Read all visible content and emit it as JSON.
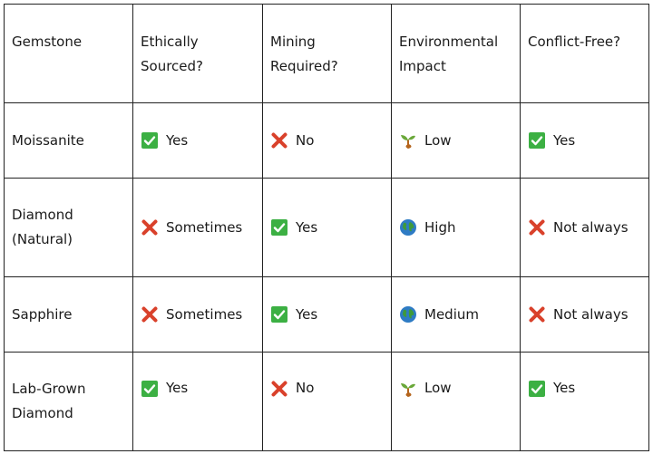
{
  "table": {
    "headers": [
      {
        "line1": "Gemstone",
        "line2": ""
      },
      {
        "line1": "Ethically",
        "line2": "Sourced?"
      },
      {
        "line1": "Mining",
        "line2": "Required?"
      },
      {
        "line1": "Environmental",
        "line2": "Impact"
      },
      {
        "line1": "Conflict-Free?",
        "line2": ""
      }
    ],
    "rows": [
      {
        "gemstone": {
          "line1": "Moissanite",
          "line2": ""
        },
        "ethically_sourced": {
          "icon": "check-mark-icon",
          "text": "Yes"
        },
        "mining_required": {
          "icon": "cross-mark-icon",
          "text": "No"
        },
        "environmental_impact": {
          "icon": "seedling-icon",
          "text": "Low"
        },
        "conflict_free": {
          "icon": "check-mark-icon",
          "text": "Yes"
        }
      },
      {
        "gemstone": {
          "line1": "Diamond",
          "line2": "(Natural)"
        },
        "ethically_sourced": {
          "icon": "cross-mark-icon",
          "text": "Sometimes"
        },
        "mining_required": {
          "icon": "check-mark-icon",
          "text": "Yes"
        },
        "environmental_impact": {
          "icon": "globe-icon",
          "text": "High"
        },
        "conflict_free": {
          "icon": "cross-mark-icon",
          "text": "Not always"
        }
      },
      {
        "gemstone": {
          "line1": "Sapphire",
          "line2": ""
        },
        "ethically_sourced": {
          "icon": "cross-mark-icon",
          "text": "Sometimes"
        },
        "mining_required": {
          "icon": "check-mark-icon",
          "text": "Yes"
        },
        "environmental_impact": {
          "icon": "globe-icon",
          "text": "Medium"
        },
        "conflict_free": {
          "icon": "cross-mark-icon",
          "text": "Not always"
        }
      },
      {
        "gemstone": {
          "line1": "Lab-Grown",
          "line2": "Diamond"
        },
        "ethically_sourced": {
          "icon": "check-mark-icon",
          "text": "Yes"
        },
        "mining_required": {
          "icon": "cross-mark-icon",
          "text": "No"
        },
        "environmental_impact": {
          "icon": "seedling-icon",
          "text": "Low"
        },
        "conflict_free": {
          "icon": "check-mark-icon",
          "text": "Yes"
        }
      }
    ]
  },
  "colors": {
    "check_green": "#3cb043",
    "cross_red": "#d9412b",
    "globe_blue": "#2e7bc4",
    "globe_green": "#3f9a3a",
    "seedling_green": "#6aa83a",
    "seed_brown": "#b5651d"
  }
}
